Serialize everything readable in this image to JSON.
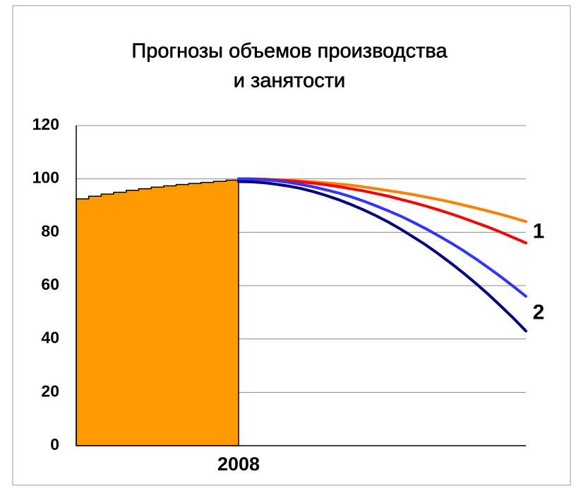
{
  "chart_data": {
    "type": "line",
    "title": [
      "Прогнозы объемов производства",
      "и занятости"
    ],
    "categories": [
      null,
      null,
      null,
      null,
      null,
      null,
      null,
      null,
      null,
      null,
      null,
      null,
      null,
      "2008",
      null,
      null,
      null,
      null,
      null,
      null,
      null,
      null,
      null,
      null,
      null,
      null,
      null,
      null,
      null,
      null,
      null,
      null,
      null,
      null,
      null,
      null,
      null
    ],
    "series": [
      {
        "kind": "step-area",
        "color": "#ff9900",
        "values": [
          92.5,
          93.5,
          94.3,
          95,
          95.7,
          96.3,
          96.9,
          97.4,
          97.9,
          98.3,
          98.7,
          99.1,
          99.5,
          100,
          null,
          null,
          null,
          null,
          null,
          null,
          null,
          null,
          null,
          null,
          null,
          null,
          null,
          null,
          null,
          null,
          null,
          null,
          null,
          null,
          null,
          null,
          null
        ]
      },
      {
        "color": "#ff8000",
        "values": [
          null,
          null,
          null,
          null,
          null,
          null,
          null,
          null,
          null,
          null,
          null,
          null,
          null,
          100,
          100,
          99.9,
          99.7,
          99.5,
          99.2,
          98.9,
          98.5,
          98.1,
          97.6,
          97,
          96.3,
          95.6,
          94.9,
          94.1,
          93.2,
          92.3,
          91.3,
          90.2,
          89.1,
          87.9,
          86.7,
          85.4,
          84
        ]
      },
      {
        "color": "#ff0000",
        "values": [
          null,
          null,
          null,
          null,
          null,
          null,
          null,
          null,
          null,
          null,
          null,
          null,
          null,
          100,
          100,
          99.8,
          99.6,
          99.3,
          98.9,
          98.4,
          97.8,
          97.1,
          96.3,
          95.5,
          94.5,
          93.5,
          92.3,
          91.1,
          89.8,
          88.4,
          86.9,
          85.3,
          83.6,
          81.9,
          80,
          78,
          76
        ]
      },
      {
        "color": "#3333ff",
        "values": [
          null,
          null,
          null,
          null,
          null,
          null,
          null,
          null,
          null,
          null,
          null,
          null,
          null,
          100,
          99.9,
          99.7,
          99.3,
          98.7,
          97.9,
          97,
          95.9,
          94.7,
          93.3,
          91.7,
          89.9,
          88,
          86,
          83.7,
          81.3,
          78.7,
          76,
          73.1,
          70,
          66.7,
          63.3,
          59.7,
          56
        ]
      },
      {
        "color": "#000080",
        "values": [
          null,
          null,
          null,
          null,
          null,
          null,
          null,
          null,
          null,
          null,
          null,
          null,
          null,
          99,
          98.9,
          98.6,
          98,
          97.3,
          96.4,
          95.2,
          93.8,
          92.2,
          90.4,
          88.4,
          86.2,
          83.8,
          81.1,
          78.2,
          75.2,
          71.9,
          68.4,
          64.7,
          60.8,
          56.7,
          52.3,
          47.8,
          43
        ]
      }
    ],
    "annotations": [
      {
        "text": "1",
        "series": [
          1,
          2
        ]
      },
      {
        "text": "2",
        "series": [
          3,
          4
        ]
      }
    ],
    "ylim": [
      0,
      120
    ],
    "yticks": [
      0,
      20,
      40,
      60,
      80,
      100,
      120
    ],
    "grid": true
  }
}
